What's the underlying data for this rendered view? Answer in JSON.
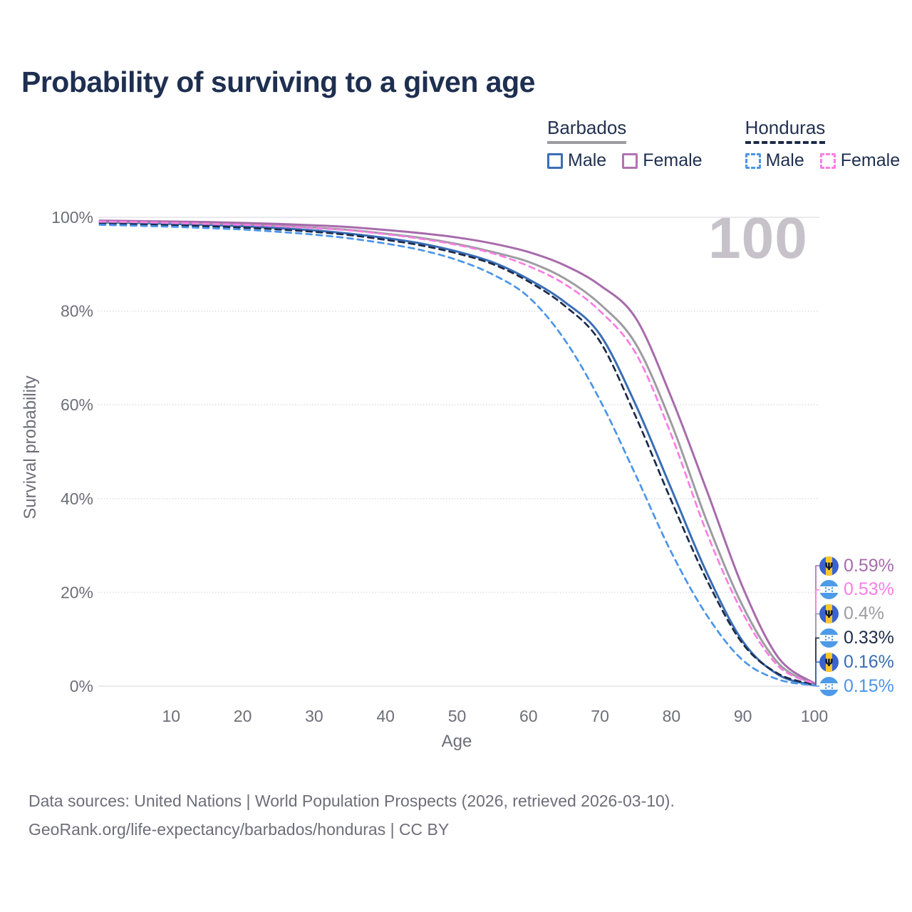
{
  "title": "Probability of surviving to a given age",
  "watermark": "100",
  "legend": {
    "groups": [
      {
        "label": "Barbados",
        "line_style": "solid",
        "line_color": "#9C9CA1",
        "items": [
          {
            "label": "Male",
            "color": "#3A6DB5",
            "style": "solid"
          },
          {
            "label": "Female",
            "color": "#B273B2",
            "style": "solid"
          }
        ]
      },
      {
        "label": "Honduras",
        "line_style": "dashed",
        "line_color": "#1C2B49",
        "items": [
          {
            "label": "Male",
            "color": "#4B95E9",
            "style": "dashed"
          },
          {
            "label": "Female",
            "color": "#FA7DE4",
            "style": "dashed"
          }
        ]
      }
    ]
  },
  "chart_data": {
    "type": "line",
    "title": "Probability of surviving to a given age",
    "xlabel": "Age",
    "ylabel": "Survival probability",
    "xlim": [
      0,
      100
    ],
    "ylim": [
      0,
      100
    ],
    "grid": true,
    "legend_position": "top-right",
    "watermark": "100",
    "x_ticks": [
      {
        "v": 10,
        "label": "10"
      },
      {
        "v": 20,
        "label": "20"
      },
      {
        "v": 30,
        "label": "30"
      },
      {
        "v": 40,
        "label": "40"
      },
      {
        "v": 50,
        "label": "50"
      },
      {
        "v": 60,
        "label": "60"
      },
      {
        "v": 70,
        "label": "70"
      },
      {
        "v": 80,
        "label": "80"
      },
      {
        "v": 90,
        "label": "90"
      },
      {
        "v": 100,
        "label": "100"
      }
    ],
    "y_ticks": [
      {
        "v": 0,
        "label": "0%"
      },
      {
        "v": 20,
        "label": "20%"
      },
      {
        "v": 40,
        "label": "40%"
      },
      {
        "v": 60,
        "label": "60%"
      },
      {
        "v": 80,
        "label": "80%"
      },
      {
        "v": 100,
        "label": "100%"
      }
    ],
    "x": [
      0,
      5,
      10,
      15,
      20,
      25,
      30,
      35,
      40,
      45,
      50,
      55,
      60,
      65,
      70,
      75,
      80,
      85,
      90,
      95,
      100
    ],
    "series": [
      {
        "name": "Barbados Female",
        "country": "barbados",
        "sex": "female",
        "style": "solid",
        "color": "#A66BAB",
        "end_label": "0.59%",
        "end_label_color": "#A66BAB",
        "values": [
          99.3,
          99.2,
          99.1,
          99.0,
          98.8,
          98.6,
          98.3,
          97.9,
          97.3,
          96.6,
          95.7,
          94.4,
          92.6,
          89.8,
          85.5,
          78.5,
          61.5,
          41.5,
          21.0,
          6.0,
          0.59
        ]
      },
      {
        "name": "Honduras Female",
        "country": "honduras",
        "sex": "female",
        "style": "dashed",
        "color": "#FA7DE4",
        "end_label": "0.53%",
        "end_label_color": "#FA7DE4",
        "values": [
          99.1,
          99.0,
          98.8,
          98.6,
          98.4,
          98.1,
          97.7,
          97.2,
          96.4,
          95.4,
          94.1,
          92.3,
          89.6,
          85.8,
          80.0,
          71.0,
          53.5,
          32.5,
          15.5,
          4.2,
          0.53
        ]
      },
      {
        "name": "Barbados Both sexes",
        "country": "barbados",
        "sex": "both",
        "style": "solid",
        "color": "#9C9CA1",
        "end_label": "0.4%",
        "end_label_color": "#9C9CA1",
        "values": [
          99.1,
          99.0,
          98.9,
          98.7,
          98.5,
          98.2,
          97.8,
          97.3,
          96.5,
          95.6,
          94.3,
          92.6,
          90.5,
          87.0,
          81.5,
          73.0,
          56.0,
          35.0,
          17.0,
          4.8,
          0.4
        ]
      },
      {
        "name": "Honduras Both sexes",
        "country": "honduras",
        "sex": "both",
        "style": "dashed",
        "color": "#1C2B49",
        "end_label": "0.33%",
        "end_label_color": "#1D2C49",
        "values": [
          98.6,
          98.5,
          98.3,
          98.1,
          97.8,
          97.4,
          96.9,
          96.2,
          95.2,
          94.0,
          92.3,
          90.0,
          86.3,
          81.2,
          73.5,
          57.5,
          39.5,
          22.5,
          9.0,
          2.6,
          0.33
        ]
      },
      {
        "name": "Barbados Male",
        "country": "barbados",
        "sex": "male",
        "style": "solid",
        "color": "#3A6DB5",
        "end_label": "0.16%",
        "end_label_color": "#3A6DB5",
        "values": [
          98.9,
          98.8,
          98.6,
          98.4,
          98.1,
          97.7,
          97.2,
          96.5,
          95.6,
          94.4,
          92.7,
          90.4,
          86.8,
          82.0,
          75.0,
          60.0,
          42.0,
          24.0,
          9.5,
          2.4,
          0.16
        ]
      },
      {
        "name": "Honduras Male",
        "country": "honduras",
        "sex": "male",
        "style": "dashed",
        "color": "#4B95E9",
        "end_label": "0.15%",
        "end_label_color": "#4B95E9",
        "values": [
          98.4,
          98.2,
          98.0,
          97.7,
          97.4,
          96.9,
          96.3,
          95.5,
          94.4,
          93.0,
          90.9,
          87.8,
          83.0,
          74.0,
          61.0,
          45.0,
          28.5,
          15.0,
          5.5,
          1.4,
          0.15
        ]
      }
    ],
    "flag_colors": {
      "barbados_blue": "#3A63CE",
      "barbados_yellow": "#FFC72C",
      "barbados_trident": "#0E1B33",
      "honduras_blue": "#4D9BE8",
      "honduras_white": "#FFFFFF",
      "honduras_star": "#3F8BDC"
    }
  },
  "colors": {
    "title_text": "#1E2F50",
    "tick_text": "#6E6E79",
    "grid_line": "#DADAE1",
    "axis_line": "#DDDDE3",
    "watermark": "#C7C2CA"
  },
  "footer": {
    "line1": "Data sources: United Nations | World Population Prospects (2026, retrieved 2026-03-10).",
    "line2": "GeoRank.org/life-expectancy/barbados/honduras | CC BY"
  }
}
